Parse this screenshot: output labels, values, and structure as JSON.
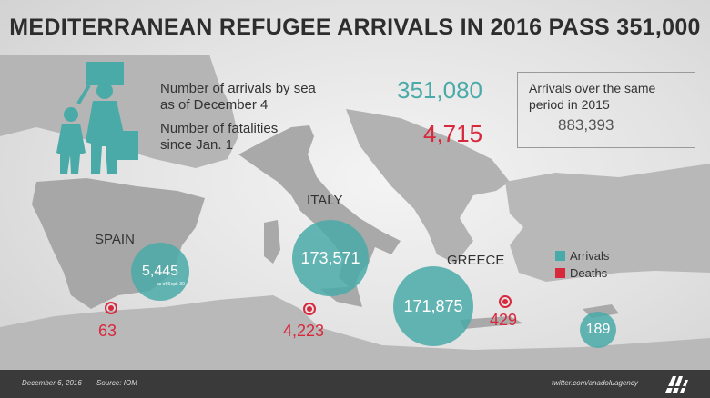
{
  "title": "MEDITERRANEAN REFUGEE ARRIVALS IN 2016 PASS 351,000",
  "stats": {
    "arrivals_label_1": "Number of arrivals by sea",
    "arrivals_label_2": "as of December 4",
    "arrivals_value": "351,080",
    "fatalities_label_1": "Number of fatalities",
    "fatalities_label_2": "since Jan. 1",
    "fatalities_value": "4,715"
  },
  "comparison": {
    "label_1": "Arrivals over the same",
    "label_2": "period in 2015",
    "value": "883,393"
  },
  "countries": {
    "spain": {
      "name": "SPAIN",
      "arrivals": "5,445",
      "note": "as of Sept. 30",
      "deaths": "63"
    },
    "italy": {
      "name": "ITALY",
      "arrivals": "173,571",
      "deaths": "4,223"
    },
    "greece": {
      "name": "GREECE",
      "arrivals": "171,875",
      "deaths": "429"
    },
    "cyprus": {
      "arrivals": "189"
    }
  },
  "legend": {
    "arrivals": "Arrivals",
    "deaths": "Deaths"
  },
  "colors": {
    "arrivals": "#4aaaa8",
    "deaths": "#d8283c",
    "land": "#a9a9a9",
    "footer": "#3a3a3a"
  },
  "footer": {
    "date": "December 6, 2016",
    "source": "Source: IOM",
    "handle": "twitter.com/anadoluagency"
  },
  "icons": [
    "refugee-family-icon",
    "anadolu-agency-logo"
  ]
}
